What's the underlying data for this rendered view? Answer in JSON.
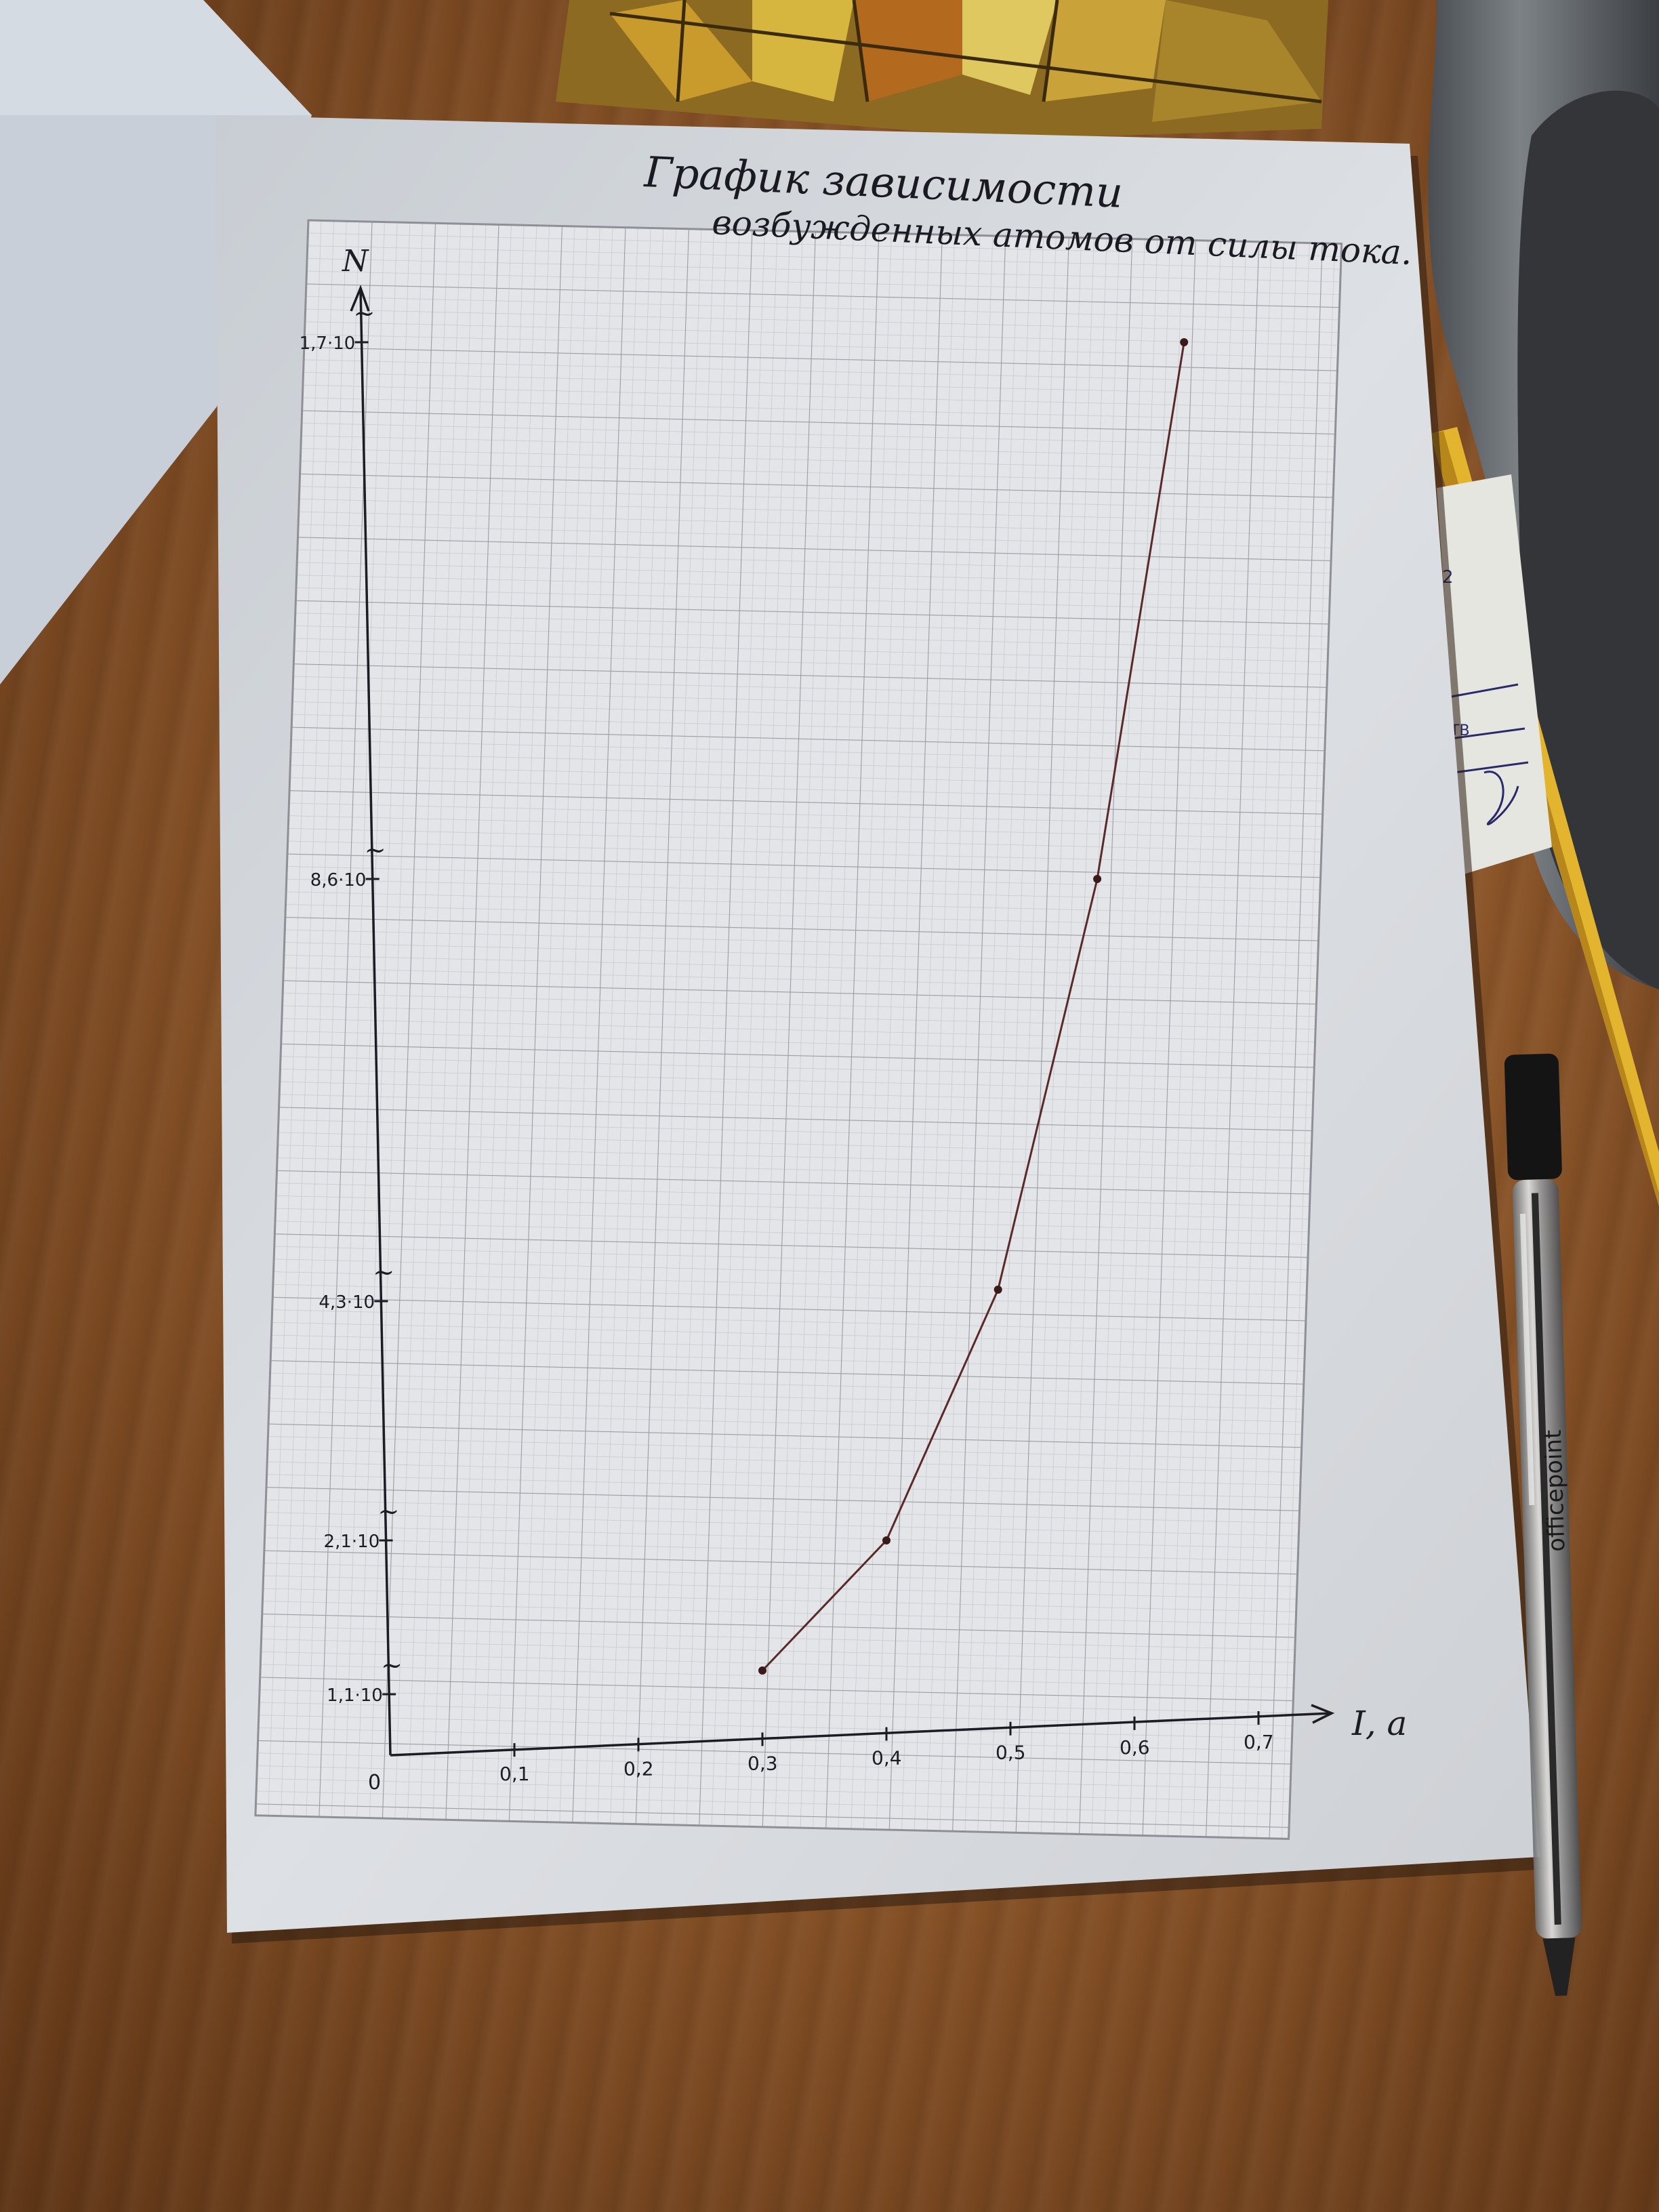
{
  "chart_data": {
    "type": "line",
    "title": "График зависимости возбужденных атомов от силы тока.",
    "xlabel": "I, a",
    "ylabel": "N",
    "origin_label": "0",
    "x_ticks": [
      "0,1",
      "0,2",
      "0,3",
      "0,4",
      "0,5",
      "0,6",
      "0,7"
    ],
    "y_ticks": [
      "1,1·10",
      "2,1·10",
      "4,3·10",
      "8,6·10",
      "1,7·10"
    ],
    "series": [
      {
        "x": [
          0.3,
          0.4,
          0.49,
          0.57,
          0.64
        ],
        "y": [
          1.1,
          2.1,
          4.3,
          8.6,
          17.0
        ]
      }
    ],
    "axis_break_marks": "~",
    "grid": true,
    "color_line": "#5a2a2a",
    "color_points": "#3a1a1a"
  },
  "scene": {
    "paper_color": "#d9dde2",
    "grid_color": "#a4a4ab",
    "desk_color": "#8a5428",
    "pen_brand": "officepoint",
    "objects": [
      "graph-paper-sheet",
      "ballpoint-pen",
      "pencil",
      "metal-bowl",
      "booklet",
      "note-paper",
      "rubiks-snake-puzzle"
    ]
  }
}
